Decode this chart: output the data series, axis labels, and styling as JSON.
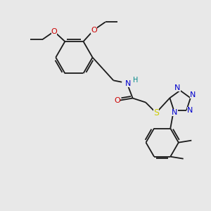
{
  "background_color": "#e8e8e8",
  "bond_color": "#1a1a1a",
  "nitrogen_color": "#0000cc",
  "oxygen_color": "#cc0000",
  "sulfur_color": "#cccc00",
  "nh_color": "#008888",
  "figsize": [
    3.0,
    3.0
  ],
  "dpi": 100,
  "xlim": [
    0,
    10
  ],
  "ylim": [
    0,
    10
  ]
}
